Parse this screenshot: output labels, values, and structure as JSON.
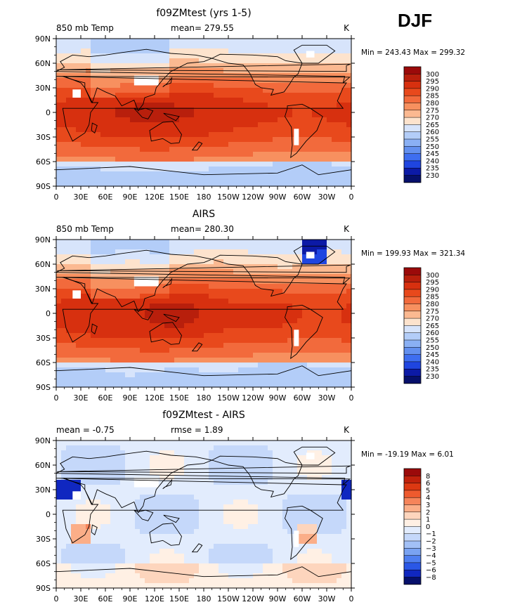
{
  "season": "DJF",
  "chart_data": [
    {
      "type": "heatmap",
      "title": "f09ZMtest (yrs 1-5)",
      "left_label": "850 mb Temp",
      "center_label": "mean= 279.55",
      "units": "K",
      "minmax": "Min = 243.43 Max = 299.32",
      "x_tick_labels": [
        "0",
        "30E",
        "60E",
        "90E",
        "120E",
        "150E",
        "180",
        "150W",
        "120W",
        "90W",
        "60W",
        "30W",
        "0"
      ],
      "y_tick_labels": [
        "90N",
        "60N",
        "30N",
        "0",
        "30S",
        "60S",
        "90S"
      ],
      "xlim": [
        0,
        360
      ],
      "ylim": [
        -90,
        90
      ],
      "colorbar_levels": [
        "300",
        "295",
        "290",
        "285",
        "280",
        "275",
        "270",
        "265",
        "260",
        "255",
        "250",
        "245",
        "240",
        "235",
        "230"
      ],
      "colorbar_colors": [
        "#9b0a0a",
        "#b81f0c",
        "#d7300f",
        "#e8491c",
        "#f26a3c",
        "#f7905f",
        "#fbb991",
        "#fde3cd",
        "#d7e4fb",
        "#b3cdf8",
        "#8ab0f4",
        "#6390ef",
        "#3e6ef0",
        "#1f45e0",
        "#0c1aa6",
        "#06106b"
      ],
      "field_range": [
        243.43,
        299.32
      ]
    },
    {
      "type": "heatmap",
      "title": "AIRS",
      "left_label": "850 mb Temp",
      "center_label": "mean= 280.30",
      "units": "K",
      "minmax": "Min = 199.93 Max = 321.34",
      "x_tick_labels": [
        "0",
        "30E",
        "60E",
        "90E",
        "120E",
        "150E",
        "180",
        "150W",
        "120W",
        "90W",
        "60W",
        "30W",
        "0"
      ],
      "y_tick_labels": [
        "90N",
        "60N",
        "30N",
        "0",
        "30S",
        "60S",
        "90S"
      ],
      "xlim": [
        0,
        360
      ],
      "ylim": [
        -90,
        90
      ],
      "colorbar_levels": [
        "300",
        "295",
        "290",
        "285",
        "280",
        "275",
        "270",
        "265",
        "260",
        "255",
        "250",
        "245",
        "240",
        "235",
        "230"
      ],
      "colorbar_colors": [
        "#9b0a0a",
        "#b81f0c",
        "#d7300f",
        "#e8491c",
        "#f26a3c",
        "#f7905f",
        "#fbb991",
        "#fde3cd",
        "#d7e4fb",
        "#b3cdf8",
        "#8ab0f4",
        "#6390ef",
        "#3e6ef0",
        "#1f45e0",
        "#0c1aa6",
        "#06106b"
      ],
      "field_range": [
        199.93,
        321.34
      ]
    },
    {
      "type": "heatmap",
      "title": "f09ZMtest - AIRS",
      "left_label": "mean = -0.75",
      "center_label": "rmse = 1.89",
      "units": "K",
      "minmax": "Min = -19.19 Max = 6.01",
      "x_tick_labels": [
        "0",
        "30E",
        "60E",
        "90E",
        "120E",
        "150E",
        "180",
        "150W",
        "120W",
        "90W",
        "60W",
        "30W",
        "0"
      ],
      "y_tick_labels": [
        "90N",
        "60N",
        "30N",
        "0",
        "30S",
        "60S",
        "90S"
      ],
      "xlim": [
        0,
        360
      ],
      "ylim": [
        -90,
        90
      ],
      "colorbar_levels": [
        "8",
        "6",
        "5",
        "4",
        "3",
        "2",
        "1",
        "0",
        "−1",
        "−2",
        "−3",
        "−4",
        "−5",
        "−6",
        "−8"
      ],
      "colorbar_colors": [
        "#9b0a0a",
        "#c0210c",
        "#dc3812",
        "#ee5a2e",
        "#f6845a",
        "#fbae88",
        "#fdd5bd",
        "#fff0e4",
        "#e2ecfd",
        "#c5d8fa",
        "#a2c0f6",
        "#7aa3f2",
        "#4f7ff0",
        "#2a57e6",
        "#1027c0",
        "#06106b"
      ],
      "field_range": [
        -19.19,
        6.01
      ]
    }
  ]
}
